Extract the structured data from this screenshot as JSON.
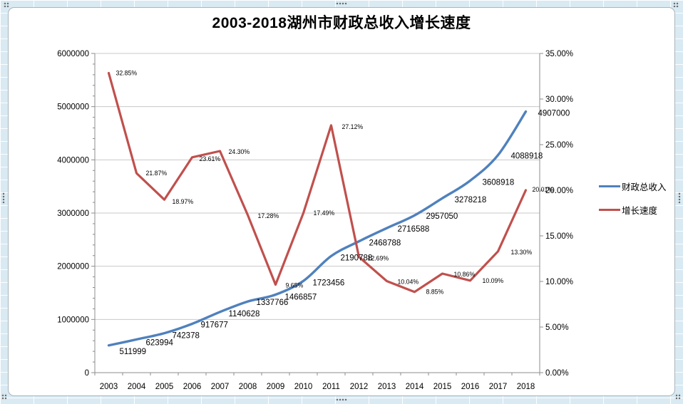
{
  "chart_data": {
    "type": "line",
    "title": "2003-2018湖州市财政总收入增长速度",
    "categories": [
      "2003",
      "2004",
      "2005",
      "2006",
      "2007",
      "2008",
      "2009",
      "2010",
      "2011",
      "2012",
      "2013",
      "2014",
      "2015",
      "2016",
      "2017",
      "2018"
    ],
    "series": [
      {
        "name": "财政总收入",
        "axis": "left",
        "color": "#4F81BD",
        "smooth": true,
        "values": [
          511999,
          623994,
          742378,
          917677,
          1140628,
          1337766,
          1466857,
          1723456,
          2190788,
          2468788,
          2716588,
          2957050,
          3278218,
          3608918,
          4088918,
          4907000
        ],
        "data_labels": [
          "511999",
          "623994",
          "742378",
          "917677",
          "1140628",
          "1337766",
          "1466857",
          "1723456",
          "2190788",
          "2468788",
          "2716588",
          "2957050",
          "3278218",
          "3608918",
          "4088918",
          "4907000"
        ]
      },
      {
        "name": "增长速度",
        "axis": "right",
        "color": "#C0504D",
        "smooth": false,
        "values": [
          32.85,
          21.87,
          18.97,
          23.61,
          24.3,
          17.28,
          9.65,
          17.49,
          27.12,
          12.69,
          10.04,
          8.85,
          10.86,
          10.09,
          13.3,
          20.01
        ],
        "data_labels": [
          "32.85%",
          "21.87%",
          "18.97%",
          "23.61%",
          "24.30%",
          "17.28%",
          "9.65%",
          "17.49%",
          "27.12%",
          "12.69%",
          "10.04%",
          "8.85%",
          "10.86%",
          "10.09%",
          "13.30%",
          "20.01%"
        ]
      }
    ],
    "left_axis": {
      "min": 0,
      "max": 6000000,
      "major_step": 1000000,
      "minor_step": 200000,
      "tick_labels": [
        "0",
        "1000000",
        "2000000",
        "3000000",
        "4000000",
        "5000000",
        "6000000"
      ]
    },
    "right_axis": {
      "min": 0,
      "max": 35,
      "major_step": 5,
      "tick_labels": [
        "0.00%",
        "5.00%",
        "10.00%",
        "15.00%",
        "20.00%",
        "25.00%",
        "30.00%",
        "35.00%"
      ]
    },
    "grid": true,
    "legend_position": "right",
    "colors": {
      "gridline": "#C9C9C9",
      "axis_line": "#8C8C8C",
      "background": "#FFFFFF",
      "sheet_background": "#D9EAF3"
    }
  }
}
